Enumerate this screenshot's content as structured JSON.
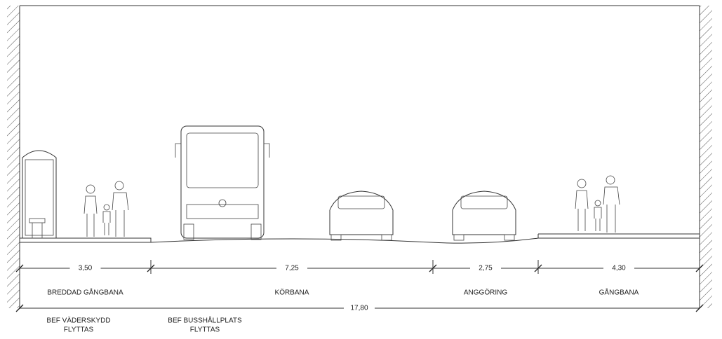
{
  "dimensions": [
    {
      "value": "3,50",
      "name": "BREDDAD GÅNGBANA"
    },
    {
      "value": "7,25",
      "name": "KÖRBANA"
    },
    {
      "value": "2,75",
      "name": "ANGGÖRING"
    },
    {
      "value": "4,30",
      "name": "GÅNGBANA"
    }
  ],
  "total": "17,80",
  "notes": [
    {
      "lines": [
        "BEF VÄDERSKYDD",
        "FLYTTAS"
      ]
    },
    {
      "lines": [
        "BEF BUSSHÅLLPLATS",
        "FLYTTAS"
      ]
    }
  ]
}
